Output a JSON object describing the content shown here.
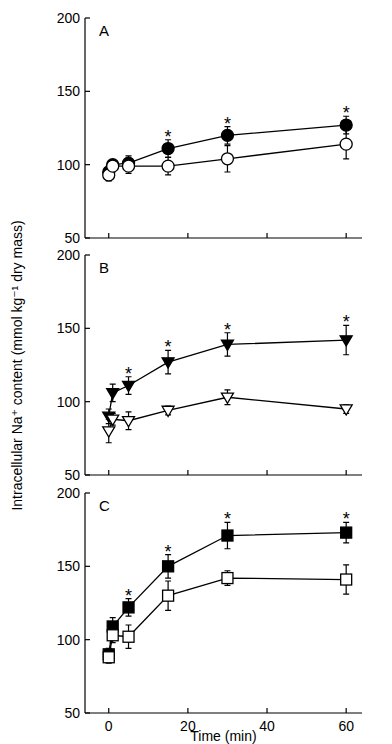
{
  "chart_data": [
    {
      "type": "line",
      "title": "A",
      "x": [
        0,
        1,
        5,
        15,
        30,
        60
      ],
      "xlim": [
        -6,
        64
      ],
      "xticks": [
        0,
        20,
        40,
        60
      ],
      "ylim": [
        50,
        200
      ],
      "yticks": [
        50,
        100,
        150,
        200
      ],
      "tick_labels": "y",
      "series": [
        {
          "color": "#000000",
          "marker": "filled-circle",
          "values": [
            95,
            100,
            101,
            111,
            120,
            127
          ],
          "errors": [
            4,
            3,
            5,
            6,
            6,
            6
          ]
        },
        {
          "color": "#000000",
          "marker": "open-circle",
          "values": [
            93,
            99,
            99,
            99,
            104,
            114
          ],
          "errors": [
            4,
            3,
            5,
            6,
            9,
            10
          ]
        }
      ],
      "annotations": [
        {
          "text": "*",
          "x": 15
        },
        {
          "text": "*",
          "x": 30
        },
        {
          "text": "*",
          "x": 60
        }
      ]
    },
    {
      "type": "line",
      "title": "B",
      "x": [
        0,
        1,
        5,
        15,
        30,
        60
      ],
      "xlim": [
        -6,
        64
      ],
      "xticks": [
        0,
        20,
        40,
        60
      ],
      "ylim": [
        50,
        200
      ],
      "yticks": [
        50,
        100,
        150,
        200
      ],
      "tick_labels": "y",
      "ylabel": "Intracellular Na⁺ content (mmol kg⁻¹ dry mass)",
      "series": [
        {
          "color": "#000000",
          "marker": "filled-triangle-down",
          "values": [
            90,
            106,
            111,
            127,
            139,
            142
          ],
          "errors": [
            5,
            6,
            6,
            8,
            8,
            10
          ]
        },
        {
          "color": "#000000",
          "marker": "open-triangle-down",
          "values": [
            80,
            88,
            87,
            94,
            103,
            95
          ],
          "errors": [
            8,
            4,
            6,
            3,
            5,
            3
          ]
        }
      ],
      "annotations": [
        {
          "text": "*",
          "x": 5
        },
        {
          "text": "*",
          "x": 15
        },
        {
          "text": "*",
          "x": 30
        },
        {
          "text": "*",
          "x": 60
        }
      ]
    },
    {
      "type": "line",
      "title": "C",
      "x": [
        0,
        1,
        5,
        15,
        30,
        60
      ],
      "xlim": [
        -6,
        64
      ],
      "xticks": [
        0,
        20,
        40,
        60
      ],
      "ylim": [
        50,
        200
      ],
      "yticks": [
        50,
        100,
        150,
        200
      ],
      "xlabel": "Time (min)",
      "series": [
        {
          "color": "#000000",
          "marker": "filled-square",
          "values": [
            90,
            109,
            122,
            150,
            171,
            173
          ],
          "errors": [
            4,
            6,
            6,
            8,
            9,
            7
          ]
        },
        {
          "color": "#000000",
          "marker": "open-square",
          "values": [
            88,
            103,
            102,
            130,
            142,
            141
          ],
          "errors": [
            4,
            5,
            8,
            10,
            5,
            10
          ]
        }
      ],
      "annotations": [
        {
          "text": "*",
          "x": 5
        },
        {
          "text": "*",
          "x": 15
        },
        {
          "text": "*",
          "x": 30
        },
        {
          "text": "*",
          "x": 60
        }
      ]
    }
  ]
}
